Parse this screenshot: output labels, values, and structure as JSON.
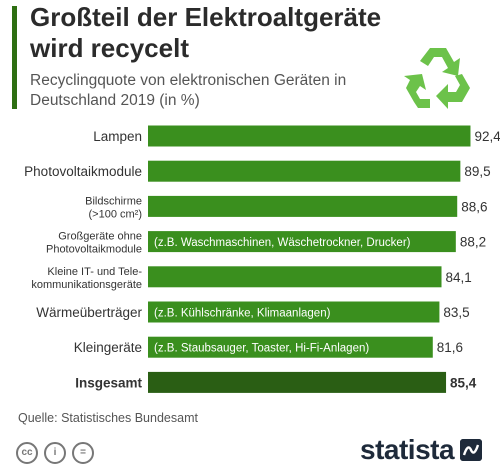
{
  "header": {
    "title": "Großteil der Elektroaltgeräte wird recycelt",
    "subtitle": "Recyclingquote von elektronischen Geräten in Deutschland 2019 (in %)"
  },
  "colors": {
    "bar": "#3a8f1e",
    "bar_total": "#2a5e14",
    "accent": "#2e6f12",
    "recycle_icon": "#6cc24a",
    "brand": "#1e2a3a"
  },
  "chart_data": {
    "type": "bar",
    "orientation": "horizontal",
    "title": "Großteil der Elektroaltgeräte wird recycelt",
    "subtitle": "Recyclingquote von elektronischen Geräten in Deutschland 2019 (in %)",
    "xlim": [
      0,
      100
    ],
    "grid": false,
    "legend": "none",
    "categories": [
      "Lampen",
      "Photovoltaikmodule",
      "Bildschirme\n(>100 cm²)",
      "Großgeräte ohne\nPhotovoltaikmodule",
      "Kleine IT- und Tele-\nkommunikationsgeräte",
      "Wärmeüberträger",
      "Kleingeräte",
      "Insgesamt"
    ],
    "values": [
      92.4,
      89.5,
      88.6,
      88.2,
      84.1,
      83.5,
      81.6,
      85.4
    ],
    "value_labels": [
      "92,4",
      "89,5",
      "88,6",
      "88,2",
      "84,1",
      "83,5",
      "81,6",
      "85,4"
    ],
    "annotations": [
      "",
      "",
      "",
      "(z.B. Waschmaschinen, Wäschetrockner, Drucker)",
      "",
      "(z.B. Kühlschränke, Klimaanlagen)",
      "(z.B. Staubsauger, Toaster, Hi-Fi-Anlagen)",
      ""
    ],
    "highlight_index": 7
  },
  "footer": {
    "source": "Quelle: Statistisches Bundesamt",
    "cc_icons": [
      "cc",
      "i",
      "="
    ],
    "brand": "statista"
  }
}
